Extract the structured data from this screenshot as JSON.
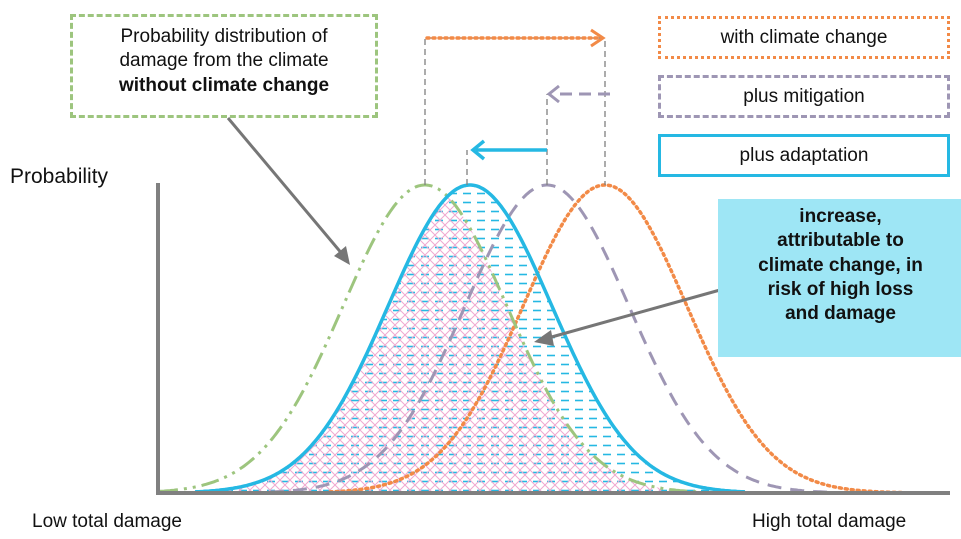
{
  "axes": {
    "y_label": "Probability",
    "x_label_low": "Low total damage",
    "x_label_high": "High total damage"
  },
  "legend": {
    "with_climate_change": "with climate change",
    "plus_mitigation": "plus mitigation",
    "plus_adaptation": "plus adaptation"
  },
  "callout_baseline": {
    "line1": "Probability distribution of",
    "line2": "damage from the climate",
    "line3": "without climate change"
  },
  "callout_increase": {
    "line1": "increase,",
    "line2": "attributable to",
    "line3": "climate change, in",
    "line4": "risk of high loss",
    "line5": "and damage"
  },
  "colors": {
    "baseline_green": "#9DC57E",
    "climate_orange": "#F28A47",
    "mitigation_purple": "#9E96B4",
    "adaptation_blue": "#25B8E3",
    "callout_fill": "#9EE6F5",
    "hatch_pink": "#F0A8D0",
    "axis_gray": "#808080"
  }
}
